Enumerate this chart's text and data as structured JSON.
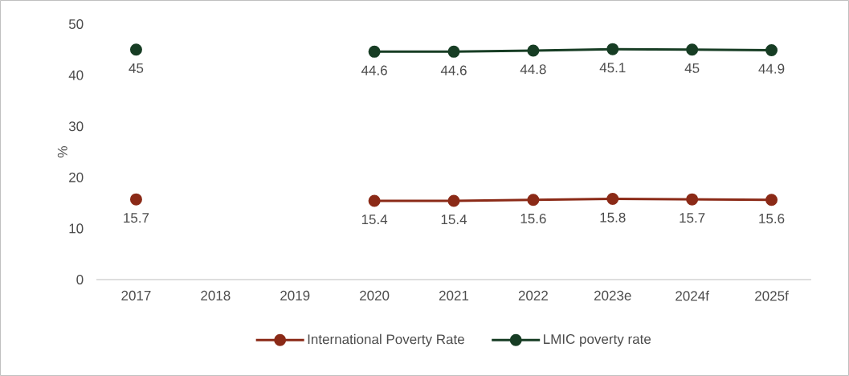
{
  "chart_data": {
    "type": "line",
    "ylabel": "%",
    "categories": [
      "2017",
      "2018",
      "2019",
      "2020",
      "2021",
      "2022",
      "2023e",
      "2024f",
      "2025f"
    ],
    "series": [
      {
        "name": "International Poverty Rate",
        "color": "#8b2a17",
        "values": [
          15.7,
          null,
          null,
          15.4,
          15.4,
          15.6,
          15.8,
          15.7,
          15.6
        ],
        "value_labels": [
          "15.7",
          null,
          null,
          "15.4",
          "15.4",
          "15.6",
          "15.8",
          "15.7",
          "15.6"
        ]
      },
      {
        "name": "LMIC poverty rate",
        "color": "#173d24",
        "values": [
          45,
          null,
          null,
          44.6,
          44.6,
          44.8,
          45.1,
          45,
          44.9
        ],
        "value_labels": [
          "45",
          null,
          null,
          "44.6",
          "44.6",
          "44.8",
          "45.1",
          "45",
          "44.9"
        ]
      }
    ],
    "ylim": [
      0,
      50
    ],
    "yticks": [
      0,
      10,
      20,
      30,
      40,
      50
    ],
    "grid": false,
    "legend": "bottom",
    "marker": "circle",
    "line_style": "solid"
  }
}
